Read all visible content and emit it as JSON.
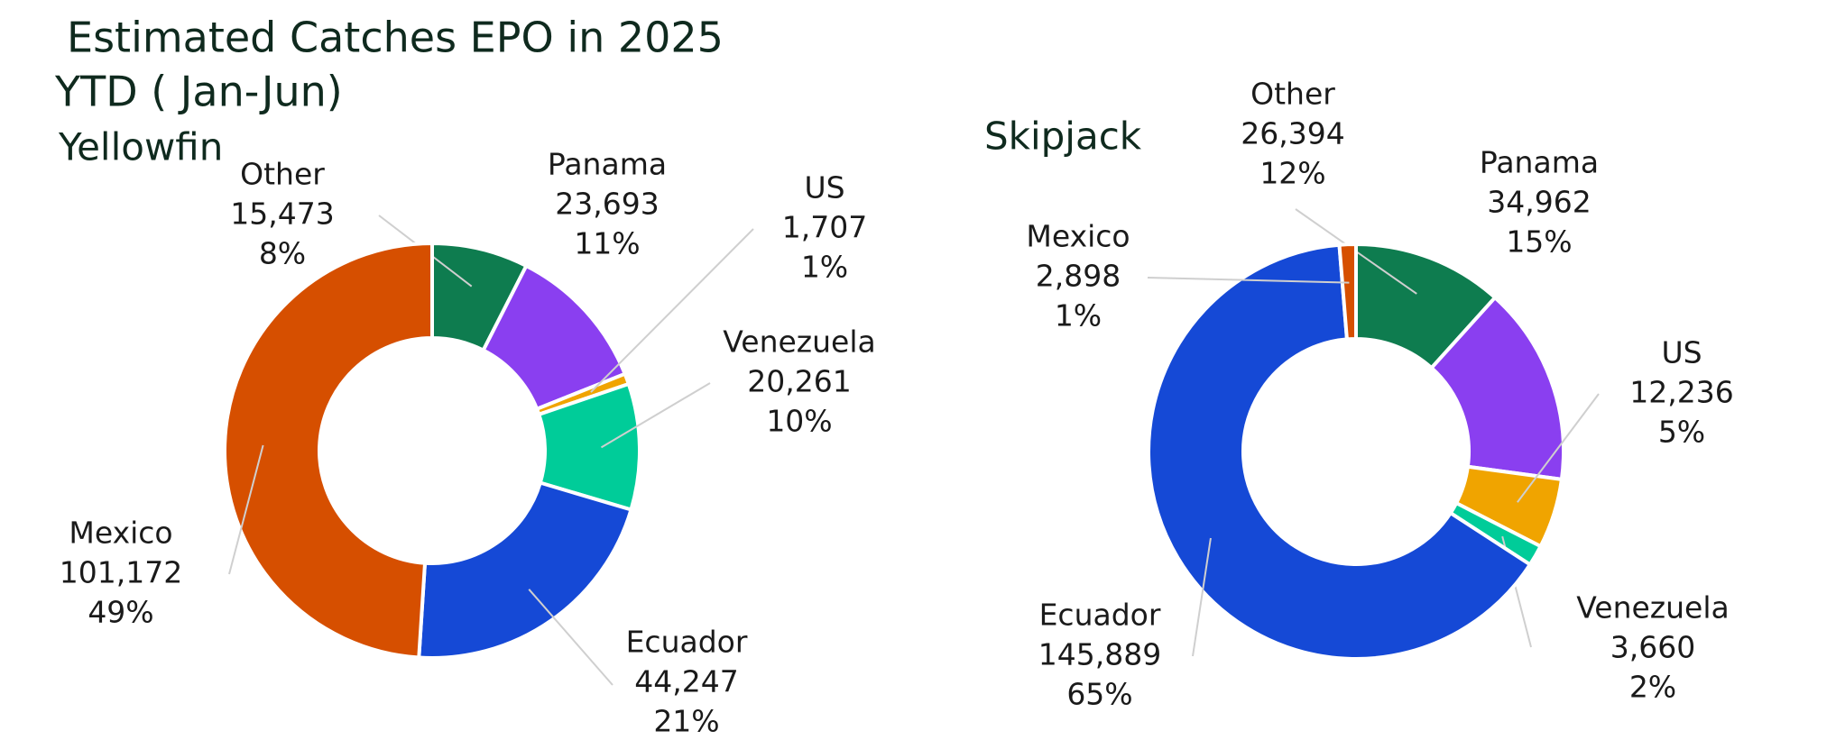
{
  "title": "Estimated Catches EPO in 2025",
  "subtitle": "YTD ( Jan-Jun)",
  "chart_data": [
    {
      "type": "donut",
      "title": "Yellowfin",
      "categories": [
        "Other",
        "Panama",
        "US",
        "Venezuela",
        "Ecuador",
        "Mexico"
      ],
      "values": [
        15473,
        23693,
        1707,
        20261,
        44247,
        101172
      ],
      "value_labels": [
        "15,473",
        "23,693",
        "1,707",
        "20,261",
        "44,247",
        "101,172"
      ],
      "percent_labels": [
        "8%",
        "11%",
        "1%",
        "10%",
        "21%",
        "49%"
      ],
      "colors": [
        "#0e7c4f",
        "#8a3ff0",
        "#f0a400",
        "#00cc99",
        "#1549d6",
        "#d64f00"
      ]
    },
    {
      "type": "donut",
      "title": "Skipjack",
      "categories": [
        "Other",
        "Panama",
        "US",
        "Venezuela",
        "Ecuador",
        "Mexico"
      ],
      "values": [
        26394,
        34962,
        12236,
        3660,
        145889,
        2898
      ],
      "value_labels": [
        "26,394",
        "34,962",
        "12,236",
        "3,660",
        "145,889",
        "2,898"
      ],
      "percent_labels": [
        "12%",
        "15%",
        "5%",
        "2%",
        "65%",
        "1%"
      ],
      "colors": [
        "#0e7c4f",
        "#8a3ff0",
        "#f0a400",
        "#00cc99",
        "#1549d6",
        "#d64f00"
      ]
    }
  ]
}
